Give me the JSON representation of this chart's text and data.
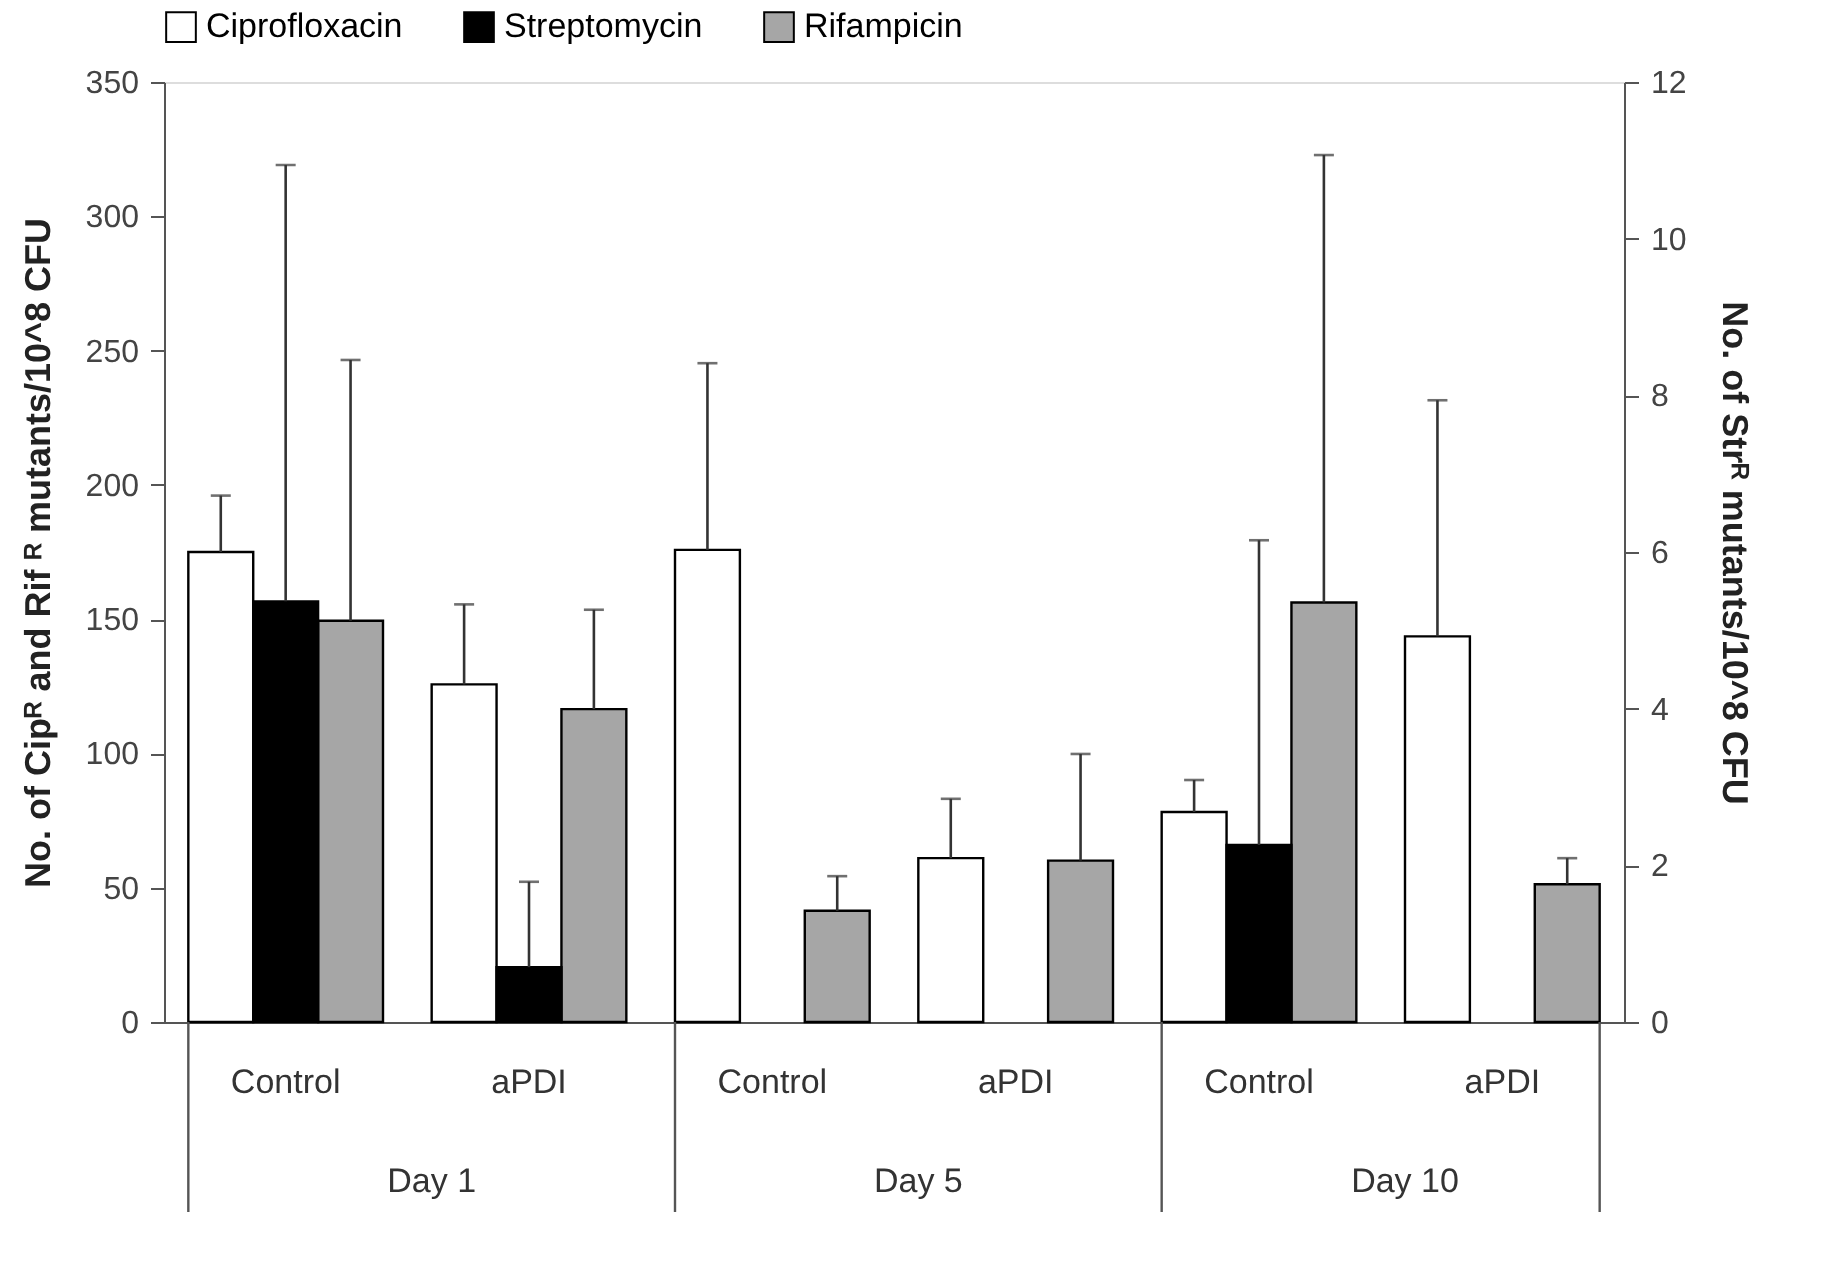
{
  "chart_data": {
    "type": "bar",
    "categories": [
      "Control",
      "aPDI",
      "Control",
      "aPDI",
      "Control",
      "aPDI"
    ],
    "annotations": [
      "Day 1",
      "Day 5",
      "Day 10"
    ],
    "ylabel": "No. of Cipᴿ and Rif ᴿ mutants/10^8 CFU",
    "y2label": "No. of Strᴿ mutants/10^8 CFU",
    "ylim": [
      0,
      350
    ],
    "yticks": [
      0,
      50,
      100,
      150,
      200,
      250,
      300,
      350
    ],
    "y2lim": [
      0,
      12
    ],
    "y2ticks": [
      0,
      2,
      4,
      6,
      8,
      10,
      12
    ],
    "legend": "top",
    "grid": false,
    "series": [
      {
        "name": "Ciprofloxacin",
        "color": "#ffffff",
        "values": [
          175,
          125.7,
          175.8,
          61,
          78.2,
          143.6
        ],
        "errors": [
          [
            175,
            196
          ],
          [
            125.7,
            155.5
          ],
          [
            175.8,
            245.3
          ],
          [
            61,
            83.1
          ],
          [
            78.2,
            90.1
          ],
          [
            143.6,
            231.5
          ]
        ]
      },
      {
        "name": "Streptomycin",
        "color": "#000000",
        "axis": "y2",
        "values": [
          5.37,
          0.7,
          null,
          null,
          2.26,
          null
        ],
        "errors": [
          [
            5.37,
            10.94
          ],
          [
            0.7,
            1.79
          ],
          null,
          null,
          [
            2.26,
            6.15
          ],
          null
        ]
      },
      {
        "name": "Rifampicin",
        "color": "#a6a6a6",
        "values": [
          149.4,
          116.5,
          41.4,
          60.1,
          156.2,
          51.3
        ],
        "errors": [
          [
            149.4,
            246.5
          ],
          [
            116.5,
            153.5
          ],
          [
            41.4,
            54.3
          ],
          [
            60.1,
            99.8
          ],
          [
            156.2,
            322.8
          ],
          [
            51.3,
            61
          ]
        ]
      }
    ]
  }
}
